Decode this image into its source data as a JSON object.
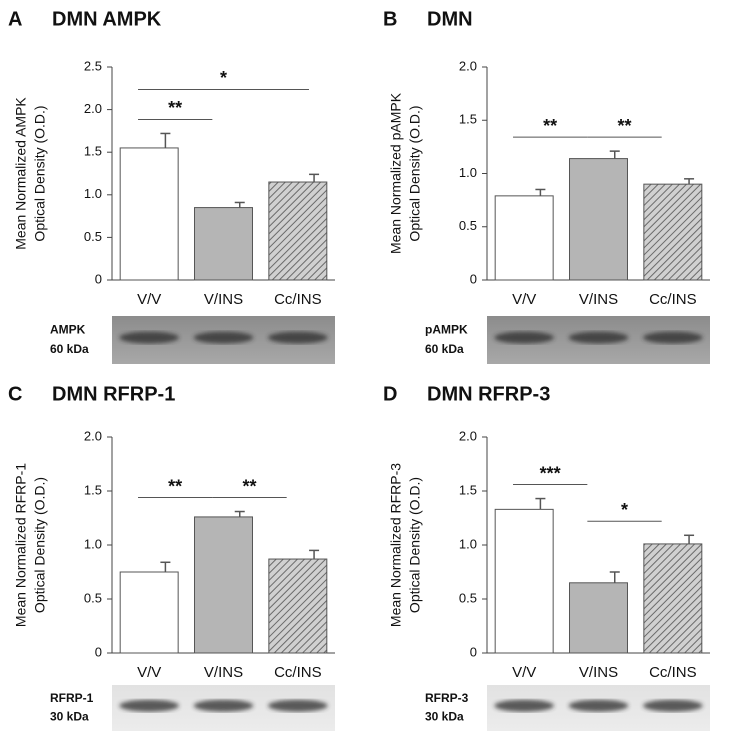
{
  "chart_data": [
    {
      "type": "bar",
      "panel": "A",
      "title": "DMN AMPK",
      "ylabel": [
        "Mean Normalized AMPK",
        "Optical Density (O.D.)"
      ],
      "categories": [
        "V/V",
        "V/INS",
        "Cc/INS"
      ],
      "values": [
        1.55,
        0.85,
        1.15
      ],
      "errors": [
        0.17,
        0.06,
        0.09
      ],
      "colors": [
        "#ffffff",
        "#b5b5b5",
        "#b5b5b5"
      ],
      "hatch": [
        false,
        false,
        true
      ],
      "ylim": [
        0,
        2.5
      ],
      "yticks": [
        0,
        0.5,
        {
          "value": 1,
          "label": "1.0"
        },
        1.5,
        {
          "value": 2,
          "label": "2.0"
        },
        2.5
      ],
      "annotations": [
        {
          "text": "**",
          "from": 0,
          "to": 1
        },
        {
          "text": "*",
          "from": 0,
          "to": 2
        }
      ],
      "blot": {
        "protein": "AMPK",
        "size": "60 kDa"
      }
    },
    {
      "type": "bar",
      "panel": "B",
      "title": "DMN",
      "ylabel": [
        "Mean Normalized pAMPK",
        "Optical Density (O.D.)"
      ],
      "categories": [
        "V/V",
        "V/INS",
        "Cc/INS"
      ],
      "values": [
        0.79,
        1.14,
        0.9
      ],
      "errors": [
        0.06,
        0.07,
        0.05
      ],
      "colors": [
        "#ffffff",
        "#b5b5b5",
        "#b5b5b5"
      ],
      "hatch": [
        false,
        false,
        true
      ],
      "ylim": [
        0,
        2
      ],
      "yticks": [
        0,
        0.5,
        {
          "value": 1,
          "label": "1.0"
        },
        1.5,
        {
          "value": 2,
          "label": "2.0"
        }
      ],
      "annotations": [
        {
          "text": "**",
          "from": 0,
          "to": 1
        },
        {
          "text": "**",
          "from": 1,
          "to": 2
        }
      ],
      "blot": {
        "protein": "pAMPK",
        "size": "60 kDa"
      }
    },
    {
      "type": "bar",
      "panel": "C",
      "title": "DMN RFRP-1",
      "ylabel": [
        "Mean Normalized RFRP-1",
        "Optical Density (O.D.)"
      ],
      "categories": [
        "V/V",
        "V/INS",
        "Cc/INS"
      ],
      "values": [
        0.75,
        1.26,
        0.87
      ],
      "errors": [
        0.09,
        0.05,
        0.08
      ],
      "colors": [
        "#ffffff",
        "#b5b5b5",
        "#b5b5b5"
      ],
      "hatch": [
        false,
        false,
        true
      ],
      "ylim": [
        0,
        2
      ],
      "yticks": [
        0,
        0.5,
        {
          "value": 1,
          "label": "1.0"
        },
        1.5,
        {
          "value": 2,
          "label": "2.0"
        }
      ],
      "annotations": [
        {
          "text": "**",
          "from": 0,
          "to": 1
        },
        {
          "text": "**",
          "from": 1,
          "to": 2
        }
      ],
      "blot": {
        "protein": "RFRP-1",
        "size": "30 kDa"
      }
    },
    {
      "type": "bar",
      "panel": "D",
      "title": "DMN RFRP-3",
      "ylabel": [
        "Mean Normalized RFRP-3",
        "Optical Density (O.D.)"
      ],
      "categories": [
        "V/V",
        "V/INS",
        "Cc/INS"
      ],
      "values": [
        1.33,
        0.65,
        1.01
      ],
      "errors": [
        0.1,
        0.1,
        0.08
      ],
      "colors": [
        "#ffffff",
        "#b5b5b5",
        "#b5b5b5"
      ],
      "hatch": [
        false,
        false,
        true
      ],
      "ylim": [
        0,
        2
      ],
      "yticks": [
        0,
        0.5,
        {
          "value": 1,
          "label": "1.0"
        },
        1.5,
        {
          "value": 2,
          "label": "2.0"
        }
      ],
      "annotations": [
        {
          "text": "***",
          "from": 0,
          "to": 1
        },
        {
          "text": "*",
          "from": 1,
          "to": 2
        }
      ],
      "blot": {
        "protein": "RFRP-3",
        "size": "30 kDa"
      }
    }
  ]
}
